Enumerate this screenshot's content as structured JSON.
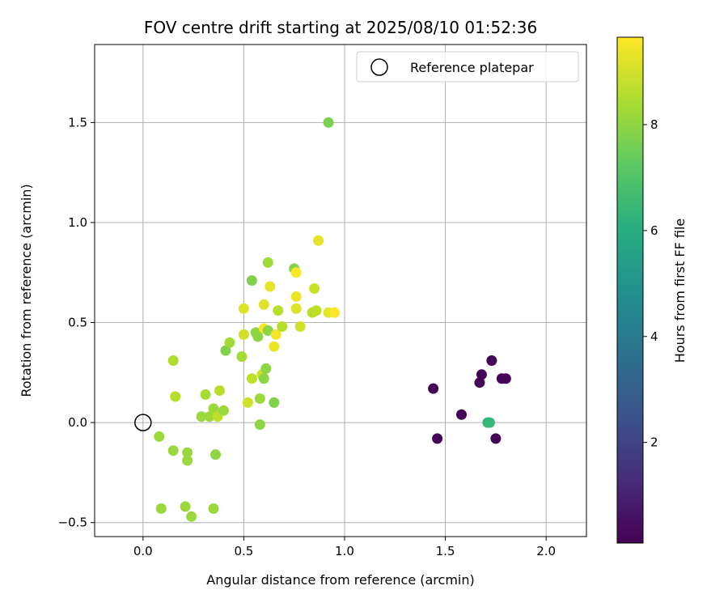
{
  "chart_data": {
    "type": "scatter",
    "title": "FOV centre drift starting at 2025/08/10 01:52:36",
    "xlabel": "Angular distance from reference (arcmin)",
    "ylabel": "Rotation from reference (arcmin)",
    "xlim": [
      -0.24,
      2.2
    ],
    "ylim": [
      -0.57,
      1.89
    ],
    "xticks": [
      0.0,
      0.5,
      1.0,
      1.5,
      2.0
    ],
    "xtick_labels": [
      "0.0",
      "0.5",
      "1.0",
      "1.5",
      "2.0"
    ],
    "yticks": [
      -0.5,
      0.0,
      0.5,
      1.0,
      1.5
    ],
    "ytick_labels": [
      "−0.5",
      "0.0",
      "0.5",
      "1.0",
      "1.5"
    ],
    "grid": true,
    "legend": {
      "position": "top-right",
      "entries": [
        "Reference platepar"
      ]
    },
    "reference": {
      "x": 0.0,
      "y": 0.0,
      "label": "Reference platepar"
    },
    "colorbar": {
      "label": "Hours from first FF file",
      "colormap": "viridis",
      "range": [
        0.1,
        9.65
      ],
      "ticks": [
        2,
        4,
        6,
        8
      ],
      "tick_labels": [
        "2",
        "4",
        "6",
        "8"
      ]
    },
    "points": [
      {
        "x": 0.08,
        "y": -0.07,
        "h": 8.2
      },
      {
        "x": 0.09,
        "y": -0.43,
        "h": 8.2
      },
      {
        "x": 0.15,
        "y": -0.14,
        "h": 8.2
      },
      {
        "x": 0.15,
        "y": 0.31,
        "h": 8.5
      },
      {
        "x": 0.16,
        "y": 0.13,
        "h": 8.6
      },
      {
        "x": 0.21,
        "y": -0.42,
        "h": 8.2
      },
      {
        "x": 0.22,
        "y": -0.15,
        "h": 8.2
      },
      {
        "x": 0.22,
        "y": -0.19,
        "h": 8.2
      },
      {
        "x": 0.24,
        "y": -0.47,
        "h": 8.2
      },
      {
        "x": 0.29,
        "y": 0.03,
        "h": 8.2
      },
      {
        "x": 0.31,
        "y": 0.14,
        "h": 8.4
      },
      {
        "x": 0.33,
        "y": 0.03,
        "h": 8.2
      },
      {
        "x": 0.35,
        "y": 0.07,
        "h": 8.2
      },
      {
        "x": 0.35,
        "y": -0.43,
        "h": 8.2
      },
      {
        "x": 0.36,
        "y": -0.16,
        "h": 8.0
      },
      {
        "x": 0.37,
        "y": 0.03,
        "h": 8.7
      },
      {
        "x": 0.38,
        "y": 0.16,
        "h": 8.6
      },
      {
        "x": 0.4,
        "y": 0.06,
        "h": 8.2
      },
      {
        "x": 0.41,
        "y": 0.36,
        "h": 7.8
      },
      {
        "x": 0.43,
        "y": 0.4,
        "h": 8.3
      },
      {
        "x": 0.49,
        "y": 0.33,
        "h": 8.3
      },
      {
        "x": 0.5,
        "y": 0.57,
        "h": 9.2
      },
      {
        "x": 0.5,
        "y": 0.44,
        "h": 9.0
      },
      {
        "x": 0.52,
        "y": 0.1,
        "h": 9.0
      },
      {
        "x": 0.54,
        "y": 0.71,
        "h": 7.8
      },
      {
        "x": 0.54,
        "y": 0.22,
        "h": 8.7
      },
      {
        "x": 0.56,
        "y": 0.45,
        "h": 8.0
      },
      {
        "x": 0.57,
        "y": 0.43,
        "h": 8.0
      },
      {
        "x": 0.58,
        "y": 0.12,
        "h": 8.2
      },
      {
        "x": 0.58,
        "y": -0.01,
        "h": 8.0
      },
      {
        "x": 0.59,
        "y": 0.24,
        "h": 9.0
      },
      {
        "x": 0.6,
        "y": 0.59,
        "h": 9.2
      },
      {
        "x": 0.6,
        "y": 0.22,
        "h": 8.0
      },
      {
        "x": 0.6,
        "y": 0.47,
        "h": 9.5
      },
      {
        "x": 0.61,
        "y": 0.27,
        "h": 8.0
      },
      {
        "x": 0.62,
        "y": 0.8,
        "h": 8.3
      },
      {
        "x": 0.62,
        "y": 0.46,
        "h": 8.0
      },
      {
        "x": 0.63,
        "y": 0.68,
        "h": 9.3
      },
      {
        "x": 0.65,
        "y": 0.38,
        "h": 9.4
      },
      {
        "x": 0.65,
        "y": 0.1,
        "h": 7.8
      },
      {
        "x": 0.66,
        "y": 0.44,
        "h": 9.5
      },
      {
        "x": 0.67,
        "y": 0.56,
        "h": 8.6
      },
      {
        "x": 0.69,
        "y": 0.48,
        "h": 8.6
      },
      {
        "x": 0.75,
        "y": 0.77,
        "h": 7.9
      },
      {
        "x": 0.76,
        "y": 0.57,
        "h": 9.2
      },
      {
        "x": 0.76,
        "y": 0.63,
        "h": 9.4
      },
      {
        "x": 0.76,
        "y": 0.75,
        "h": 9.6
      },
      {
        "x": 0.78,
        "y": 0.48,
        "h": 9.0
      },
      {
        "x": 0.84,
        "y": 0.55,
        "h": 8.6
      },
      {
        "x": 0.85,
        "y": 0.67,
        "h": 8.9
      },
      {
        "x": 0.86,
        "y": 0.56,
        "h": 8.7
      },
      {
        "x": 0.87,
        "y": 0.91,
        "h": 9.3
      },
      {
        "x": 0.92,
        "y": 1.5,
        "h": 7.7
      },
      {
        "x": 0.92,
        "y": 0.55,
        "h": 9.3
      },
      {
        "x": 0.95,
        "y": 0.55,
        "h": 9.6
      },
      {
        "x": 1.44,
        "y": 0.17,
        "h": 0.2
      },
      {
        "x": 1.46,
        "y": -0.08,
        "h": 0.2
      },
      {
        "x": 1.58,
        "y": 0.04,
        "h": 0.2
      },
      {
        "x": 1.67,
        "y": 0.2,
        "h": 0.2
      },
      {
        "x": 1.68,
        "y": 0.24,
        "h": 0.2
      },
      {
        "x": 1.71,
        "y": 0.0,
        "h": 6.5
      },
      {
        "x": 1.72,
        "y": 0.0,
        "h": 6.5
      },
      {
        "x": 1.73,
        "y": 0.31,
        "h": 0.2
      },
      {
        "x": 1.75,
        "y": -0.08,
        "h": 0.2
      },
      {
        "x": 1.78,
        "y": 0.22,
        "h": 0.2
      },
      {
        "x": 1.8,
        "y": 0.22,
        "h": 0.2
      }
    ]
  }
}
